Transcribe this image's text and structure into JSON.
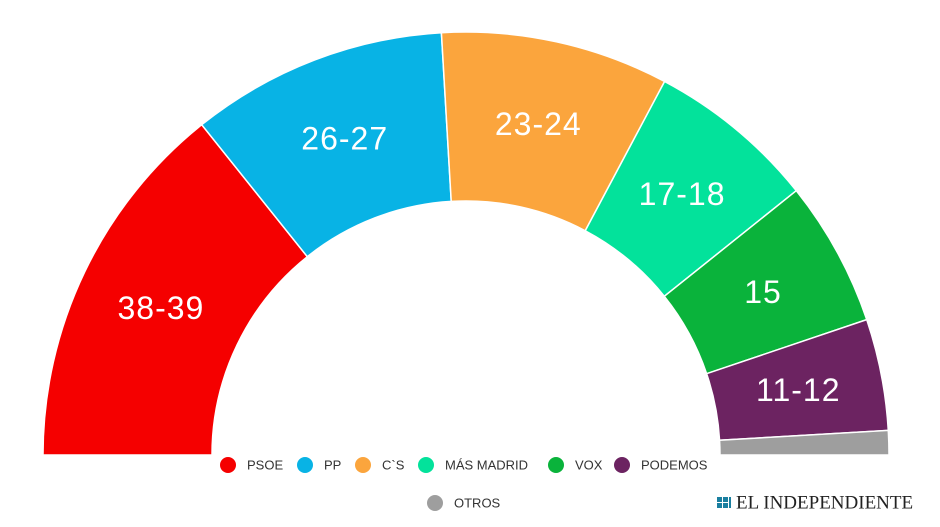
{
  "chart_data": {
    "type": "semicircle",
    "series": [
      {
        "name": "PSOE",
        "color": "#f50000",
        "value": 38.5,
        "value_label": "38-39"
      },
      {
        "name": "PP",
        "color": "#08b3e5",
        "value": 26.5,
        "value_label": "26-27"
      },
      {
        "name": "C`S",
        "color": "#fba53d",
        "value": 23.5,
        "value_label": "23-24"
      },
      {
        "name": "MÁS MADRID",
        "color": "#03e29b",
        "value": 17.5,
        "value_label": "17-18"
      },
      {
        "name": "VOX",
        "color": "#0ab33b",
        "value": 15,
        "value_label": "15"
      },
      {
        "name": "PODEMOS",
        "color": "#6c2361",
        "value": 11.5,
        "value_label": "11-12"
      },
      {
        "name": "OTROS",
        "color": "#9e9e9e",
        "value": 2.5
      }
    ],
    "brand": "EL INDEPENDIENTE"
  }
}
